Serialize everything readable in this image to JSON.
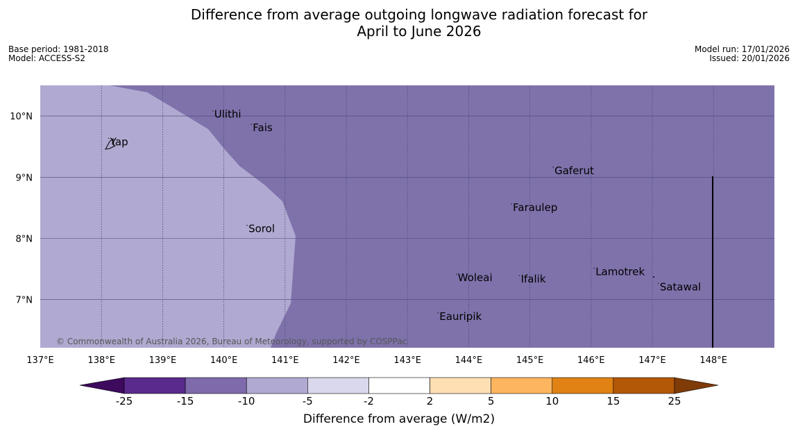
{
  "title": {
    "line1": "Difference from average outgoing longwave radiation forecast for",
    "line2": "April to June 2026"
  },
  "meta_left": {
    "base_period": "Base period: 1981-2018",
    "model": "Model: ACCESS-S2"
  },
  "meta_right": {
    "model_run": "Model run: 17/01/2026",
    "issued": "Issued: 20/01/2026"
  },
  "map": {
    "lon_range": [
      137,
      149
    ],
    "lat_range": [
      6.3,
      10.5
    ],
    "lon_ticks": [
      "137°E",
      "138°E",
      "139°E",
      "140°E",
      "141°E",
      "142°E",
      "143°E",
      "144°E",
      "145°E",
      "146°E",
      "147°E",
      "148°E"
    ],
    "lat_ticks": [
      "10°N",
      "9°N",
      "8°N",
      "7°N"
    ],
    "copyright": "© Commonwealth of Australia 2026, Bureau of Meteorology, supported by COSPPac",
    "colors": {
      "background_fill": "#7f72ab",
      "west_fill": "#b0a9d1",
      "gridline": "#4a4470"
    },
    "islands": [
      {
        "name": "Ulithi",
        "lon": 139.82,
        "lat": 9.97
      },
      {
        "name": "Fais",
        "lon": 140.45,
        "lat": 9.75
      },
      {
        "name": "Yap",
        "lon": 138.12,
        "lat": 9.52
      },
      {
        "name": "Gaferut",
        "lon": 145.38,
        "lat": 9.05
      },
      {
        "name": "Faraulep",
        "lon": 144.7,
        "lat": 8.45
      },
      {
        "name": "Sorol",
        "lon": 140.38,
        "lat": 8.1
      },
      {
        "name": "Lamotrek",
        "lon": 146.05,
        "lat": 7.4
      },
      {
        "name": "Woleai",
        "lon": 143.8,
        "lat": 7.3
      },
      {
        "name": "Ifalik",
        "lon": 144.83,
        "lat": 7.28
      },
      {
        "name": "Satawal",
        "lon": 147.1,
        "lat": 7.15
      },
      {
        "name": "Eauripik",
        "lon": 143.5,
        "lat": 6.67
      }
    ]
  },
  "colorbar": {
    "label": "Difference from average (W/m2)",
    "ticks": [
      "-25",
      "-15",
      "-10",
      "-5",
      "-2",
      "2",
      "5",
      "10",
      "15",
      "25"
    ],
    "colors": [
      "#3d0a5e",
      "#5a2a8c",
      "#7f6aab",
      "#b0a9d1",
      "#d9d8ec",
      "#ffffff",
      "#fedfb3",
      "#fdb55f",
      "#e08214",
      "#b35806",
      "#7f3b08"
    ]
  }
}
